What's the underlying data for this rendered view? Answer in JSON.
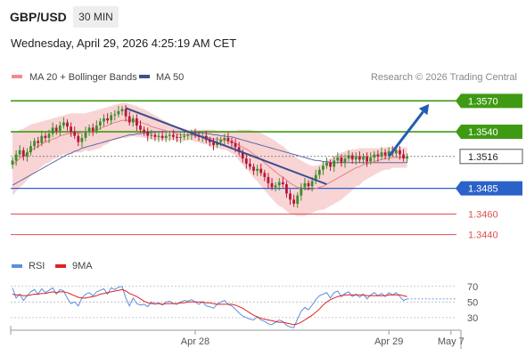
{
  "header": {
    "symbol": "GBP/USD",
    "timeframe": "30 MIN",
    "timestamp": "Wednesday, April 29, 2026 4:25:19 AM CET"
  },
  "legend": {
    "ma20_label": "MA 20 + Bollinger Bands",
    "ma50_label": "MA 50",
    "credit": "Research © 2026 Trading Central"
  },
  "rsi_legend": {
    "rsi_label": "RSI",
    "ma9_label": "9MA"
  },
  "colors": {
    "green": "#3f9a13",
    "blue": "#2b62c8",
    "red": "#e05050",
    "candle_up": "#3c8c2c",
    "candle_down": "#b8163a",
    "band_fill": "#f9d4d4",
    "ma20": "#e88080",
    "ma50": "#5a6aa8",
    "trend": "#3b4a8e",
    "arrow": "#1f5fb0",
    "rsi": "#5b8ee0",
    "rsi_ma": "#e02020"
  },
  "chart_data": {
    "type": "candlestick",
    "price_ylim": [
      1.3425,
      1.3585
    ],
    "levels": [
      {
        "value": 1.357,
        "label": "1.3570",
        "kind": "resistance",
        "color": "#3f9a13"
      },
      {
        "value": 1.354,
        "label": "1.3540",
        "kind": "resistance",
        "color": "#3f9a13"
      },
      {
        "value": 1.3516,
        "label": "1.3516",
        "kind": "last",
        "color": "#333333"
      },
      {
        "value": 1.3485,
        "label": "1.3485",
        "kind": "pivot",
        "color": "#2b62c8"
      },
      {
        "value": 1.346,
        "label": "1.3460",
        "kind": "support",
        "color": "#e05050"
      },
      {
        "value": 1.344,
        "label": "1.3440",
        "kind": "support",
        "color": "#e05050"
      }
    ],
    "x_ticks": [
      "Apr 28",
      "Apr 29",
      "May 7"
    ],
    "x_tick_index": [
      50,
      103,
      120
    ],
    "n_slots": 122,
    "closes": [
      1.3512,
      1.3518,
      1.3522,
      1.3516,
      1.352,
      1.3526,
      1.3531,
      1.3529,
      1.3536,
      1.3534,
      1.3538,
      1.3544,
      1.3541,
      1.3546,
      1.3549,
      1.3545,
      1.354,
      1.3536,
      1.353,
      1.3534,
      1.354,
      1.3544,
      1.3541,
      1.3546,
      1.355,
      1.3553,
      1.3551,
      1.3556,
      1.3557,
      1.356,
      1.3562,
      1.3555,
      1.3549,
      1.3553,
      1.3546,
      1.3542,
      1.354,
      1.3536,
      1.3537,
      1.3535,
      1.3536,
      1.3534,
      1.3536,
      1.3537,
      1.3535,
      1.3534,
      1.3535,
      1.3536,
      1.3537,
      1.3538,
      1.3537,
      1.3535,
      1.3536,
      1.3532,
      1.353,
      1.3527,
      1.353,
      1.3532,
      1.3534,
      1.3531,
      1.3529,
      1.3525,
      1.352,
      1.3514,
      1.3509,
      1.3506,
      1.3502,
      1.3504,
      1.35,
      1.3496,
      1.349,
      1.3486,
      1.3488,
      1.3491,
      1.3489,
      1.348,
      1.3474,
      1.347,
      1.3478,
      1.3486,
      1.349,
      1.3487,
      1.3492,
      1.3498,
      1.3503,
      1.3507,
      1.351,
      1.3506,
      1.3512,
      1.3515,
      1.351,
      1.3514,
      1.3517,
      1.3513,
      1.3516,
      1.3513,
      1.3516,
      1.3511,
      1.3515,
      1.3518,
      1.3516,
      1.352,
      1.3517,
      1.3521,
      1.3519,
      1.3522,
      1.3518,
      1.3514,
      1.3516
    ],
    "ma20": [
      1.3508,
      1.3511,
      1.3514,
      1.3516,
      1.3519,
      1.3522,
      1.3524,
      1.3526,
      1.3528,
      1.353,
      1.3531,
      1.3533,
      1.3534,
      1.3536,
      1.3537,
      1.3538,
      1.3538,
      1.3539,
      1.3539,
      1.3539,
      1.354,
      1.354,
      1.3541,
      1.3542,
      1.3543,
      1.3545,
      1.3546,
      1.3548,
      1.3549,
      1.355,
      1.3551,
      1.3551,
      1.3551,
      1.3551,
      1.355,
      1.3549,
      1.3548,
      1.3547,
      1.3545,
      1.3544,
      1.3543,
      1.3542,
      1.3541,
      1.354,
      1.3539,
      1.3538,
      1.3537,
      1.3537,
      1.3537,
      1.3537,
      1.3536,
      1.3536,
      1.3535,
      1.3535,
      1.3534,
      1.3533,
      1.3533,
      1.3532,
      1.3532,
      1.3531,
      1.353,
      1.3529,
      1.3527,
      1.3525,
      1.3523,
      1.3521,
      1.3518,
      1.3516,
      1.3513,
      1.351,
      1.3507,
      1.3504,
      1.3501,
      1.3498,
      1.3496,
      1.3493,
      1.349,
      1.3488,
      1.3486,
      1.3485,
      1.3484,
      1.3484,
      1.3484,
      1.3485,
      1.3486,
      1.3487,
      1.3489,
      1.3491,
      1.3493,
      1.3495,
      1.3497,
      1.3499,
      1.3501,
      1.3503,
      1.3505,
      1.3506,
      1.3508,
      1.3509,
      1.351,
      1.3511,
      1.3512,
      1.3513,
      1.3514,
      1.3514,
      1.3515,
      1.3515,
      1.3515,
      1.3515,
      1.3515
    ],
    "bb_upper": [
      1.354,
      1.354,
      1.3542,
      1.3543,
      1.3545,
      1.3547,
      1.3548,
      1.3549,
      1.355,
      1.3551,
      1.3552,
      1.3553,
      1.3554,
      1.3555,
      1.3556,
      1.3557,
      1.3558,
      1.3558,
      1.3558,
      1.3558,
      1.3558,
      1.3559,
      1.356,
      1.3561,
      1.3562,
      1.3563,
      1.3564,
      1.3565,
      1.3566,
      1.3567,
      1.3568,
      1.3568,
      1.3567,
      1.3566,
      1.3565,
      1.3563,
      1.3562,
      1.356,
      1.3558,
      1.3556,
      1.3554,
      1.3552,
      1.355,
      1.3548,
      1.3546,
      1.3545,
      1.3544,
      1.3543,
      1.3542,
      1.3542,
      1.3542,
      1.3542,
      1.3542,
      1.3542,
      1.3542,
      1.3542,
      1.3541,
      1.3541,
      1.3541,
      1.3541,
      1.3541,
      1.3541,
      1.3542,
      1.3542,
      1.3542,
      1.3542,
      1.3541,
      1.354,
      1.3539,
      1.3537,
      1.3535,
      1.3533,
      1.3531,
      1.3528,
      1.3526,
      1.3523,
      1.352,
      1.3517,
      1.3514,
      1.3512,
      1.351,
      1.3508,
      1.3507,
      1.3507,
      1.3508,
      1.351,
      1.3512,
      1.3514,
      1.3516,
      1.3518,
      1.352,
      1.3521,
      1.3522,
      1.3523,
      1.3523,
      1.3524,
      1.3524,
      1.3524,
      1.3524,
      1.3524,
      1.3524,
      1.3524,
      1.3525,
      1.3525,
      1.3525,
      1.3525,
      1.3525,
      1.3525,
      1.3525
    ],
    "bb_lower": [
      1.3478,
      1.3482,
      1.3486,
      1.3489,
      1.3493,
      1.3497,
      1.35,
      1.3503,
      1.3506,
      1.3509,
      1.351,
      1.3513,
      1.3514,
      1.3517,
      1.3518,
      1.3519,
      1.3518,
      1.352,
      1.352,
      1.352,
      1.3522,
      1.3521,
      1.3522,
      1.3523,
      1.3524,
      1.3527,
      1.3528,
      1.3531,
      1.3532,
      1.3533,
      1.3534,
      1.3534,
      1.3535,
      1.3536,
      1.3535,
      1.3535,
      1.3534,
      1.3534,
      1.3532,
      1.3532,
      1.3532,
      1.3532,
      1.3532,
      1.3532,
      1.3532,
      1.3531,
      1.353,
      1.3531,
      1.3532,
      1.3532,
      1.353,
      1.353,
      1.3528,
      1.3528,
      1.3526,
      1.3524,
      1.3525,
      1.3523,
      1.3523,
      1.3521,
      1.3519,
      1.3517,
      1.3512,
      1.3508,
      1.3504,
      1.35,
      1.3495,
      1.3492,
      1.3487,
      1.3483,
      1.3479,
      1.3475,
      1.3471,
      1.3468,
      1.3466,
      1.3463,
      1.346,
      1.3459,
      1.3458,
      1.3458,
      1.3458,
      1.346,
      1.3461,
      1.3463,
      1.3464,
      1.3464,
      1.3466,
      1.3468,
      1.347,
      1.3472,
      1.3474,
      1.3477,
      1.348,
      1.3483,
      1.3487,
      1.3488,
      1.3492,
      1.3494,
      1.3496,
      1.3498,
      1.35,
      1.3502,
      1.3503,
      1.3503,
      1.3505,
      1.3505,
      1.3505,
      1.3505,
      1.3505
    ],
    "ma50": [
      1.3488,
      1.349,
      1.3492,
      1.3494,
      1.3496,
      1.3498,
      1.35,
      1.3502,
      1.3504,
      1.3506,
      1.3508,
      1.351,
      1.3512,
      1.3514,
      1.3516,
      1.3518,
      1.3519,
      1.3521,
      1.3522,
      1.3524,
      1.3525,
      1.3526,
      1.3527,
      1.3528,
      1.3529,
      1.353,
      1.3531,
      1.3532,
      1.3533,
      1.3534,
      1.3535,
      1.3536,
      1.3537,
      1.3537,
      1.3538,
      1.3538,
      1.3539,
      1.3539,
      1.3539,
      1.354,
      1.354,
      1.354,
      1.354,
      1.354,
      1.354,
      1.354,
      1.354,
      1.354,
      1.354,
      1.354,
      1.3539,
      1.3539,
      1.3539,
      1.3538,
      1.3538,
      1.3537,
      1.3537,
      1.3536,
      1.3536,
      1.3535,
      1.3535,
      1.3534,
      1.3533,
      1.3532,
      1.3531,
      1.353,
      1.3529,
      1.3528,
      1.3527,
      1.3526,
      1.3525,
      1.3524,
      1.3523,
      1.3522,
      1.3521,
      1.352,
      1.3519,
      1.3518,
      1.3517,
      1.3516,
      1.3515,
      1.3514,
      1.3513,
      1.3512,
      1.3512,
      1.3511,
      1.3511,
      1.351,
      1.351,
      1.351,
      1.351,
      1.351,
      1.351,
      1.351,
      1.351,
      1.351,
      1.351,
      1.351,
      1.351,
      1.351,
      1.351,
      1.351,
      1.351,
      1.351,
      1.351,
      1.351,
      1.351,
      1.351,
      1.351
    ],
    "trendline": [
      [
        31,
        1.3563
      ],
      [
        86,
        1.3489
      ]
    ],
    "forecast_arrow": [
      [
        103,
        1.3516
      ],
      [
        114,
        1.3567
      ]
    ],
    "rsi_ylim": [
      15,
      80
    ],
    "rsi_ticks": [
      70,
      50,
      30
    ],
    "rsi": [
      68,
      55,
      60,
      52,
      58,
      63,
      66,
      60,
      67,
      62,
      65,
      68,
      60,
      66,
      64,
      55,
      48,
      50,
      45,
      55,
      60,
      62,
      58,
      63,
      65,
      67,
      60,
      68,
      66,
      69,
      70,
      55,
      45,
      55,
      48,
      46,
      47,
      44,
      50,
      47,
      49,
      46,
      50,
      51,
      48,
      47,
      50,
      52,
      51,
      53,
      50,
      47,
      50,
      45,
      44,
      42,
      47,
      50,
      52,
      47,
      45,
      41,
      36,
      32,
      30,
      28,
      27,
      31,
      27,
      25,
      22,
      21,
      24,
      27,
      25,
      20,
      18,
      17,
      28,
      38,
      43,
      40,
      46,
      53,
      58,
      60,
      62,
      55,
      62,
      64,
      57,
      61,
      63,
      57,
      60,
      56,
      60,
      54,
      59,
      62,
      58,
      61,
      57,
      62,
      59,
      62,
      57,
      52,
      54
    ],
    "rsi_ma": [
      60,
      59,
      59,
      58,
      58,
      59,
      60,
      60,
      61,
      61,
      62,
      63,
      62,
      63,
      63,
      62,
      60,
      58,
      56,
      55,
      55,
      56,
      57,
      58,
      60,
      61,
      62,
      63,
      64,
      65,
      66,
      64,
      61,
      59,
      57,
      54,
      51,
      49,
      48,
      48,
      48,
      47,
      48,
      48,
      48,
      48,
      49,
      49,
      50,
      50,
      50,
      50,
      50,
      49,
      49,
      48,
      47,
      47,
      47,
      47,
      47,
      46,
      44,
      42,
      39,
      36,
      33,
      31,
      29,
      28,
      27,
      26,
      25,
      24,
      24,
      23,
      22,
      21,
      22,
      24,
      27,
      30,
      33,
      37,
      41,
      46,
      50,
      53,
      55,
      57,
      58,
      59,
      59,
      59,
      59,
      59,
      59,
      58,
      58,
      58,
      58,
      58,
      58,
      59,
      59,
      59,
      59,
      58,
      57
    ]
  }
}
